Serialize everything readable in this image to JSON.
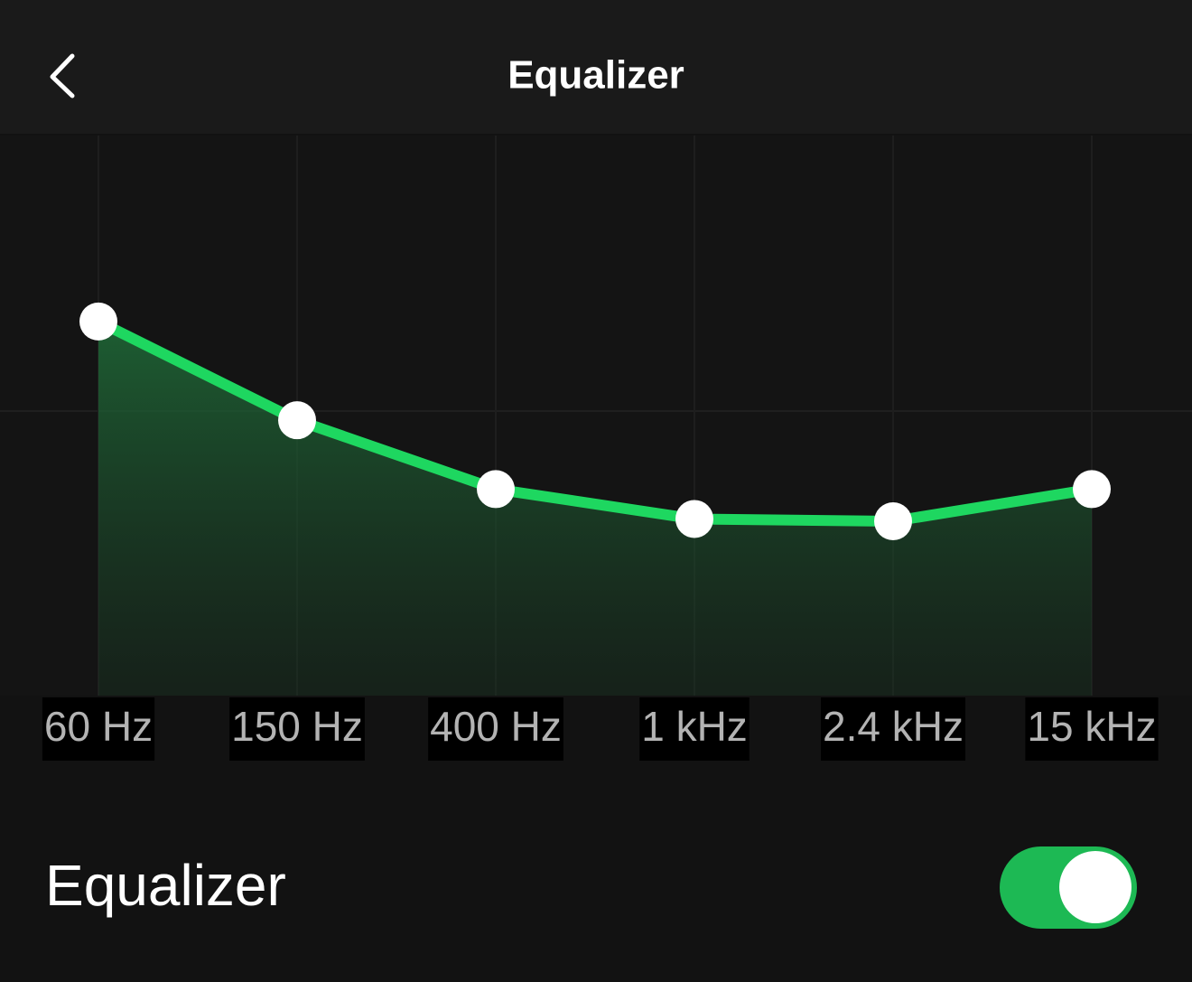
{
  "header": {
    "title": "Equalizer"
  },
  "chart_data": {
    "type": "line",
    "categories": [
      "60 Hz",
      "150 Hz",
      "400 Hz",
      "1 kHz",
      "2.4 kHz",
      "15 kHz"
    ],
    "values": [
      3.9,
      -0.4,
      -3.4,
      -4.7,
      -4.8,
      -3.4
    ],
    "color": "#1ed760",
    "ylim": [
      -12,
      12
    ]
  },
  "settings": {
    "label": "Equalizer",
    "enabled": true
  }
}
